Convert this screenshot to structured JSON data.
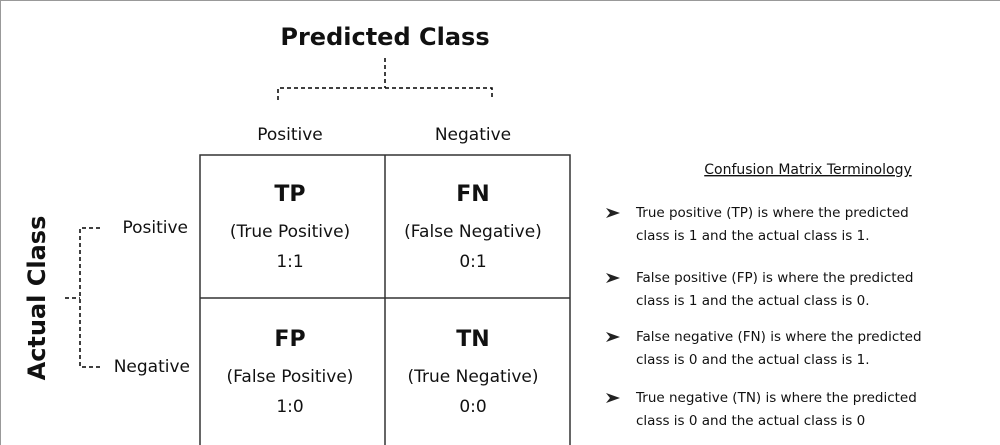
{
  "header": {
    "title": "Predicted Class"
  },
  "columns": [
    "Positive",
    "Negative"
  ],
  "side": {
    "title": "Actual Class",
    "rows": [
      "Positive",
      "Negative"
    ]
  },
  "cells": [
    [
      {
        "abbr": "TP",
        "name": "(True Positive)",
        "code": "1:1"
      },
      {
        "abbr": "FN",
        "name": "(False Negative)",
        "code": "0:1"
      }
    ],
    [
      {
        "abbr": "FP",
        "name": "(False Positive)",
        "code": "1:0"
      },
      {
        "abbr": "TN",
        "name": "(True Negative)",
        "code": "0:0"
      }
    ]
  ],
  "terminology": {
    "title": "Confusion Matrix Terminology",
    "items": [
      [
        "True positive (TP) is where the predicted",
        "class is 1 and the actual class is 1."
      ],
      [
        "False positive (FP) is where the predicted",
        "class is 1 and the actual class is 0."
      ],
      [
        "False negative (FN) is where the predicted",
        "class is 0 and the actual class is 1."
      ],
      [
        "True negative (TN) is where the predicted",
        "class is 0 and the actual class is 0"
      ]
    ]
  }
}
